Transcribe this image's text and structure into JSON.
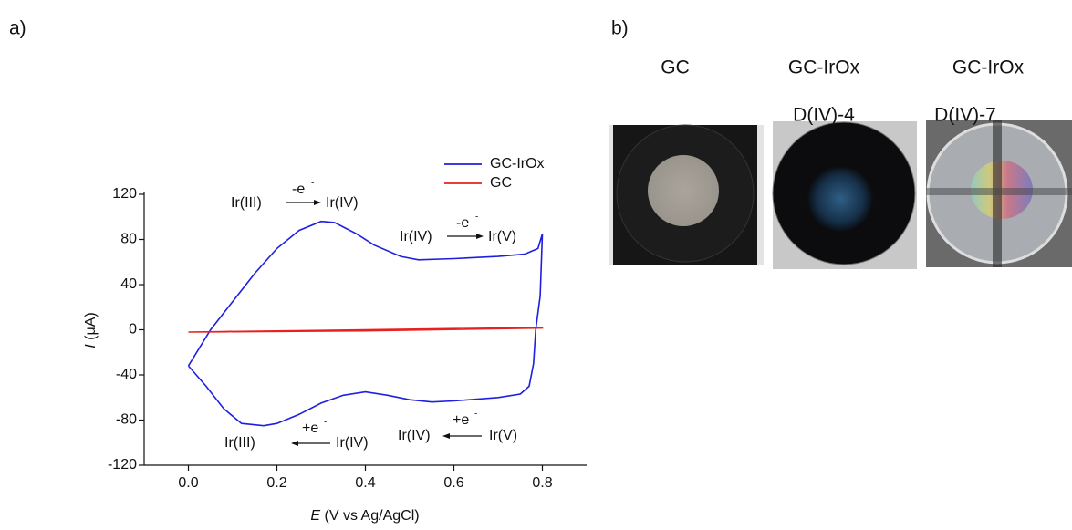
{
  "panel_labels": [
    "a)",
    "b)"
  ],
  "chart_data": {
    "type": "line",
    "xlabel_var": "E",
    "xlabel_unit": "(V vs Ag/AgCl)",
    "ylabel_var": "I",
    "ylabel_unit": "(μA)",
    "xlim": [
      -0.1,
      0.9
    ],
    "ylim": [
      -120,
      120
    ],
    "xticks": [
      {
        "value": 0,
        "label": "0.0"
      },
      0.2,
      0.4,
      0.6,
      0.8
    ],
    "yticks": [
      -120,
      -80,
      -40,
      0,
      40,
      80,
      120
    ],
    "series": [
      {
        "name": "GC-IrOx",
        "color": "#1f1fe0",
        "x": [
          0,
          0.05,
          0.1,
          0.15,
          0.2,
          0.25,
          0.3,
          0.33,
          0.38,
          0.42,
          0.48,
          0.52,
          0.6,
          0.7,
          0.76,
          0.79,
          0.8,
          0.795,
          0.785,
          0.78,
          0.77,
          0.75,
          0.7,
          0.6,
          0.55,
          0.5,
          0.45,
          0.4,
          0.35,
          0.3,
          0.25,
          0.2,
          0.17,
          0.12,
          0.08,
          0.04,
          0
        ],
        "values": [
          -32,
          0,
          25,
          50,
          72,
          88,
          96,
          95,
          85,
          75,
          65,
          62,
          63,
          65,
          67,
          72,
          85,
          30,
          0,
          -30,
          -50,
          -57,
          -60,
          -63,
          -64,
          -62,
          -58,
          -55,
          -58,
          -65,
          -75,
          -83,
          -85,
          -83,
          -70,
          -50,
          -32
        ]
      },
      {
        "name": "GC",
        "color": "#e82020",
        "x": [
          0,
          0.4,
          0.8,
          0.8,
          0.4,
          0
        ],
        "values": [
          -2,
          -1,
          1.5,
          2,
          0,
          -2
        ]
      }
    ],
    "annotations": [
      {
        "from": "Ir(III)",
        "electron": "-e",
        "sign": "-",
        "to": "Ir(IV)"
      },
      {
        "from": "Ir(IV)",
        "electron": "-e",
        "sign": "-",
        "to": "Ir(V)"
      },
      {
        "from": "Ir(III)",
        "electron": "+e",
        "sign": "-",
        "to": "Ir(IV)"
      },
      {
        "from": "Ir(IV)",
        "electron": "+e",
        "sign": "-",
        "to": "Ir(V)"
      }
    ]
  },
  "images": [
    {
      "label": "GC"
    },
    {
      "label": "GC-IrOx",
      "sublabel": "D(IV)-4"
    },
    {
      "label": "GC-IrOx",
      "sublabel": "D(IV)-7"
    }
  ]
}
